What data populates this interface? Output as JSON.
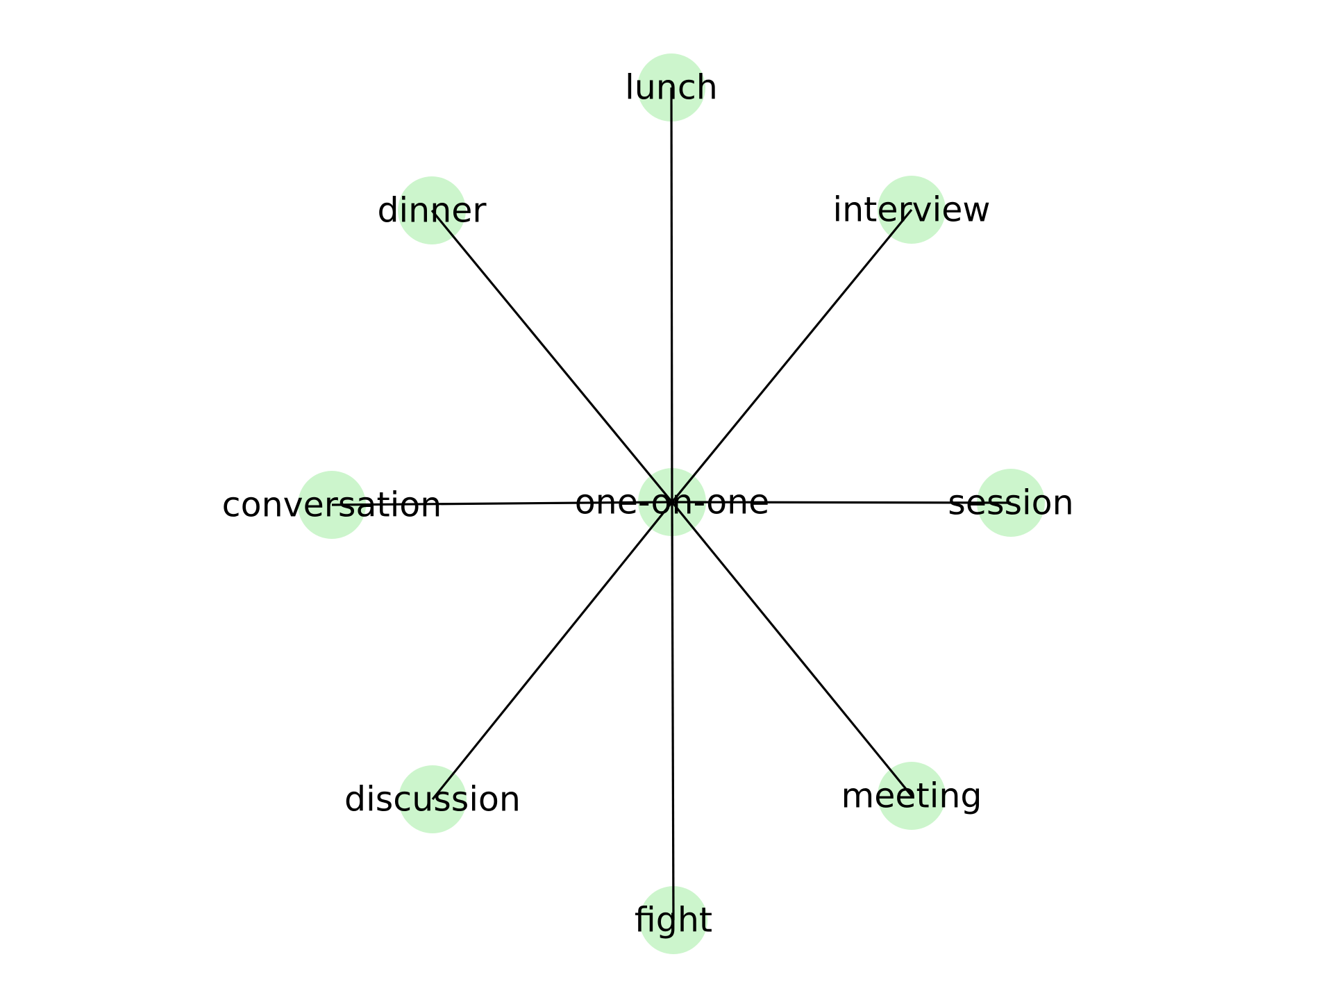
{
  "graph": {
    "node_color": "#ccf5cc",
    "edge_color": "#000000",
    "center": "one-on-one",
    "nodes": [
      {
        "id": "one-on-one",
        "label": "one-on-one"
      },
      {
        "id": "lunch",
        "label": "lunch"
      },
      {
        "id": "dinner",
        "label": "dinner"
      },
      {
        "id": "interview",
        "label": "interview"
      },
      {
        "id": "conversation",
        "label": "conversation"
      },
      {
        "id": "session",
        "label": "session"
      },
      {
        "id": "discussion",
        "label": "discussion"
      },
      {
        "id": "meeting",
        "label": "meeting"
      },
      {
        "id": "fight",
        "label": "fight"
      }
    ],
    "edges": [
      {
        "source": "one-on-one",
        "target": "lunch"
      },
      {
        "source": "one-on-one",
        "target": "dinner"
      },
      {
        "source": "one-on-one",
        "target": "interview"
      },
      {
        "source": "one-on-one",
        "target": "conversation"
      },
      {
        "source": "one-on-one",
        "target": "session"
      },
      {
        "source": "one-on-one",
        "target": "discussion"
      },
      {
        "source": "one-on-one",
        "target": "meeting"
      },
      {
        "source": "one-on-one",
        "target": "fight"
      }
    ]
  }
}
